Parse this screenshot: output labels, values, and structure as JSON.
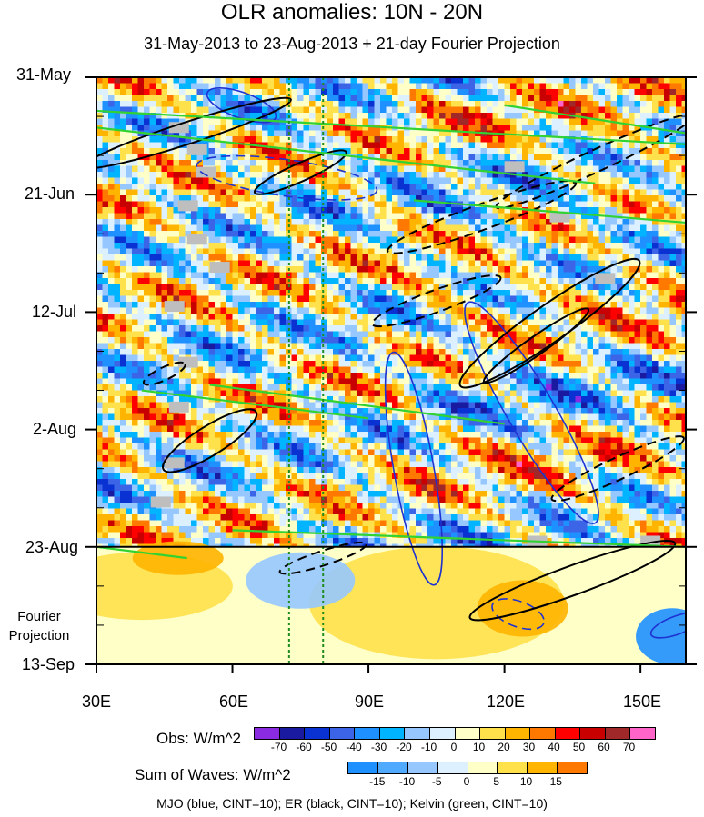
{
  "chart_data": {
    "type": "heatmap",
    "title": "OLR anomalies: 10N - 20N",
    "subtitle": "31-May-2013 to 23-Aug-2013 + 21-day Fourier Projection",
    "x_tick_labels": [
      "30E",
      "60E",
      "90E",
      "120E",
      "150E"
    ],
    "x_ticks": [
      30,
      60,
      90,
      120,
      150
    ],
    "xlim": [
      30,
      160
    ],
    "y_tick_labels": [
      "31-May",
      "21-Jun",
      "12-Jul",
      "2-Aug",
      "23-Aug",
      "13-Sep"
    ],
    "y_ticks_days": [
      0,
      21,
      42,
      63,
      84,
      105
    ],
    "ylim_days": [
      0,
      105
    ],
    "projection_label": "Fourier Projection",
    "projection_start_day": 84,
    "reference_lines_lon": [
      72.5,
      80
    ],
    "obs_colorbar": {
      "label": "Obs: W/m^2",
      "levels": [
        "-70",
        "-60",
        "-50",
        "-40",
        "-30",
        "-20",
        "-10",
        "0",
        "10",
        "20",
        "30",
        "40",
        "50",
        "60",
        "70"
      ],
      "colors": [
        "#8a2be2",
        "#1a1aa0",
        "#0a32d2",
        "#3c64e6",
        "#1e90ff",
        "#00b4ff",
        "#96c8ff",
        "#dcf0ff",
        "#ffffc8",
        "#ffe14b",
        "#ffb400",
        "#ff7800",
        "#ff0000",
        "#c80000",
        "#a02828",
        "#ff64c8"
      ]
    },
    "waves_colorbar": {
      "label": "Sum of Waves: W/m^2",
      "levels": [
        "-15",
        "-10",
        "-5",
        "0",
        "5",
        "10",
        "15"
      ],
      "colors": [
        "#1e90ff",
        "#50aaff",
        "#96c8ff",
        "#dcf0ff",
        "#ffffc8",
        "#ffe14b",
        "#ffb400",
        "#ff7800"
      ]
    },
    "footnote": "MJO (blue, CINT=10); ER (black, CINT=10); Kelvin (green, CINT=10)",
    "line_colors": {
      "mjo": "#1e32d2",
      "er": "#000000",
      "kelvin": "#32d232",
      "reference": "#1e8c1e"
    }
  }
}
